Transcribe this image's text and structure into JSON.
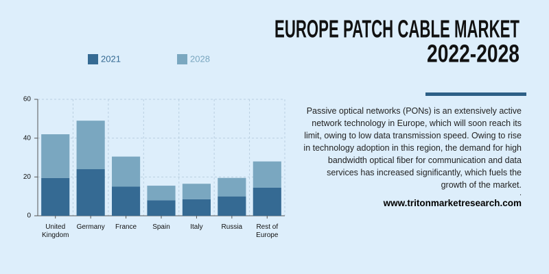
{
  "header": {
    "title_lines": [
      "EUROPE PATCH CABLE MARKET",
      "2022-2028"
    ]
  },
  "chart_data": {
    "type": "bar",
    "stacked": true,
    "categories": [
      "United Kingdom",
      "Germany",
      "France",
      "Spain",
      "Italy",
      "Russia",
      "Rest of Europe"
    ],
    "series": [
      {
        "name": "2021",
        "color": "#356a93",
        "values": [
          19.5,
          24,
          15,
          8,
          8.5,
          10,
          14.5
        ]
      },
      {
        "name": "2028",
        "color": "#7aa7c0",
        "values": [
          22.5,
          25,
          15.5,
          7.5,
          8,
          9.5,
          13.5
        ]
      }
    ],
    "ylim": [
      0,
      60
    ],
    "yticks": [
      0,
      20,
      40,
      60
    ],
    "grid": true,
    "legend": "top"
  },
  "description": "Passive optical networks (PONs) is an extensively active network technology in Europe, which will soon reach its limit, owing to low data transmission speed. Owing to rise in technology adoption in this region, the demand for high bandwidth optical fiber for communication and data services has increased significantly, which fuels the growth of the market.",
  "note": ".",
  "website": "www.tritonmarketresearch.com"
}
